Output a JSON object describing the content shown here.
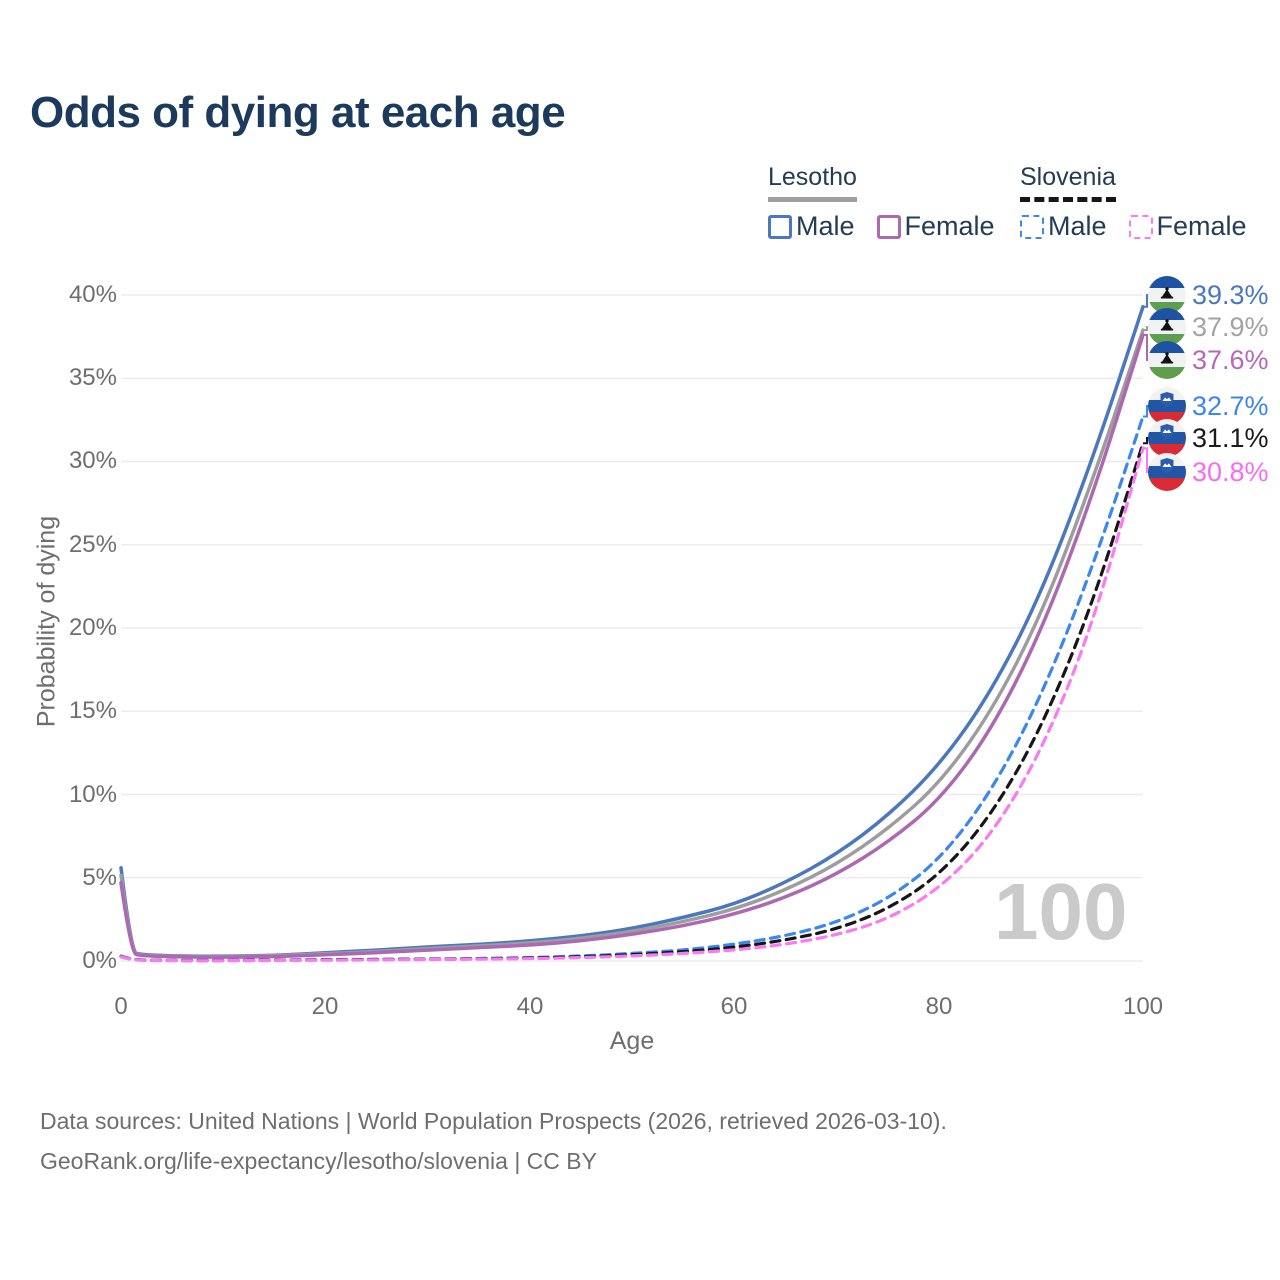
{
  "header": {
    "title": "Odds of dying at each age"
  },
  "legend": {
    "groups": [
      {
        "name": "Lesotho",
        "rule_style": "solid",
        "rule_color": "#a0a0a0",
        "items": [
          {
            "label": "Male",
            "swatch_color": "#4a78bf",
            "dashed": false
          },
          {
            "label": "Female",
            "swatch_color": "#ad68b2",
            "dashed": false
          }
        ]
      },
      {
        "name": "Slovenia",
        "rule_style": "dashed",
        "rule_color": "#161616",
        "items": [
          {
            "label": "Male",
            "swatch_color": "#3b87f2",
            "dashed": true
          },
          {
            "label": "Female",
            "swatch_color": "#fb79f1",
            "dashed": true
          }
        ]
      }
    ]
  },
  "chart_data": {
    "type": "line",
    "title": "Odds of dying at each age",
    "xlabel": "Age",
    "ylabel": "Probability of dying",
    "xlim": [
      0,
      100
    ],
    "ylim": [
      0,
      40
    ],
    "grid": "horizontal",
    "x_tick_labels": [
      "0",
      "20",
      "40",
      "60",
      "80",
      "100"
    ],
    "x_tick_values": [
      0,
      20,
      40,
      60,
      80,
      100
    ],
    "y_tick_labels": [
      "40%",
      "35%",
      "30%",
      "25%",
      "20%",
      "15%",
      "10%",
      "5%",
      "0%"
    ],
    "y_tick_values": [
      40,
      35,
      30,
      25,
      20,
      15,
      10,
      5,
      0
    ],
    "grid_color": "#ececec",
    "series": [
      {
        "name": "Lesotho Male",
        "country": "Lesotho",
        "sex": "male",
        "color": "#4a78bf",
        "dashed": false,
        "end_value": 39.3,
        "points": [
          [
            0,
            5.6
          ],
          [
            1,
            0.55
          ],
          [
            2,
            0.38
          ],
          [
            5,
            0.3
          ],
          [
            10,
            0.28
          ],
          [
            15,
            0.33
          ],
          [
            20,
            0.5
          ],
          [
            25,
            0.65
          ],
          [
            30,
            0.85
          ],
          [
            35,
            1.0
          ],
          [
            40,
            1.2
          ],
          [
            45,
            1.5
          ],
          [
            50,
            1.95
          ],
          [
            55,
            2.6
          ],
          [
            60,
            3.4
          ],
          [
            65,
            4.7
          ],
          [
            70,
            6.4
          ],
          [
            75,
            8.7
          ],
          [
            80,
            11.7
          ],
          [
            85,
            16.0
          ],
          [
            90,
            22.0
          ],
          [
            95,
            30.0
          ],
          [
            100,
            39.3
          ]
        ]
      },
      {
        "name": "Lesotho",
        "country": "Lesotho",
        "sex": "all",
        "color": "#9d9d9d",
        "dashed": false,
        "end_value": 37.9,
        "points": [
          [
            0,
            5.15
          ],
          [
            1,
            0.5
          ],
          [
            2,
            0.35
          ],
          [
            5,
            0.27
          ],
          [
            10,
            0.25
          ],
          [
            15,
            0.3
          ],
          [
            20,
            0.44
          ],
          [
            25,
            0.57
          ],
          [
            30,
            0.75
          ],
          [
            35,
            0.9
          ],
          [
            40,
            1.08
          ],
          [
            45,
            1.35
          ],
          [
            50,
            1.77
          ],
          [
            55,
            2.35
          ],
          [
            60,
            3.1
          ],
          [
            65,
            4.25
          ],
          [
            70,
            5.8
          ],
          [
            75,
            7.9
          ],
          [
            80,
            10.6
          ],
          [
            85,
            14.8
          ],
          [
            90,
            20.7
          ],
          [
            95,
            28.7
          ],
          [
            100,
            37.9
          ]
        ]
      },
      {
        "name": "Lesotho Female",
        "country": "Lesotho",
        "sex": "female",
        "color": "#ad68b2",
        "dashed": false,
        "end_value": 37.6,
        "points": [
          [
            0,
            4.7
          ],
          [
            1,
            0.45
          ],
          [
            2,
            0.32
          ],
          [
            5,
            0.25
          ],
          [
            10,
            0.22
          ],
          [
            15,
            0.26
          ],
          [
            20,
            0.38
          ],
          [
            25,
            0.5
          ],
          [
            30,
            0.65
          ],
          [
            35,
            0.8
          ],
          [
            40,
            0.95
          ],
          [
            45,
            1.2
          ],
          [
            50,
            1.6
          ],
          [
            55,
            2.1
          ],
          [
            60,
            2.8
          ],
          [
            65,
            3.8
          ],
          [
            70,
            5.2
          ],
          [
            75,
            7.1
          ],
          [
            80,
            9.6
          ],
          [
            85,
            13.7
          ],
          [
            90,
            19.7
          ],
          [
            95,
            27.8
          ],
          [
            100,
            37.6
          ]
        ]
      },
      {
        "name": "Slovenia Male",
        "country": "Slovenia",
        "sex": "male",
        "color": "#3b87f2",
        "dashed": true,
        "end_value": 32.7,
        "points": [
          [
            0,
            0.3
          ],
          [
            1,
            0.05
          ],
          [
            5,
            0.03
          ],
          [
            10,
            0.03
          ],
          [
            15,
            0.05
          ],
          [
            20,
            0.08
          ],
          [
            25,
            0.1
          ],
          [
            30,
            0.12
          ],
          [
            35,
            0.15
          ],
          [
            40,
            0.2
          ],
          [
            45,
            0.3
          ],
          [
            50,
            0.45
          ],
          [
            55,
            0.65
          ],
          [
            60,
            1.0
          ],
          [
            65,
            1.5
          ],
          [
            70,
            2.3
          ],
          [
            75,
            3.7
          ],
          [
            80,
            6.0
          ],
          [
            85,
            10.0
          ],
          [
            90,
            15.8
          ],
          [
            95,
            23.5
          ],
          [
            100,
            32.7
          ]
        ]
      },
      {
        "name": "Slovenia",
        "country": "Slovenia",
        "sex": "all",
        "color": "#161616",
        "dashed": true,
        "end_value": 31.1,
        "points": [
          [
            0,
            0.27
          ],
          [
            1,
            0.05
          ],
          [
            5,
            0.03
          ],
          [
            10,
            0.03
          ],
          [
            15,
            0.04
          ],
          [
            20,
            0.07
          ],
          [
            25,
            0.09
          ],
          [
            30,
            0.1
          ],
          [
            35,
            0.13
          ],
          [
            40,
            0.17
          ],
          [
            45,
            0.25
          ],
          [
            50,
            0.38
          ],
          [
            55,
            0.55
          ],
          [
            60,
            0.82
          ],
          [
            65,
            1.25
          ],
          [
            70,
            1.9
          ],
          [
            75,
            3.1
          ],
          [
            80,
            5.1
          ],
          [
            85,
            8.6
          ],
          [
            90,
            13.9
          ],
          [
            95,
            21.3
          ],
          [
            100,
            31.1
          ]
        ]
      },
      {
        "name": "Slovenia Female",
        "country": "Slovenia",
        "sex": "female",
        "color": "#fb79f1",
        "dashed": true,
        "end_value": 30.8,
        "points": [
          [
            0,
            0.25
          ],
          [
            1,
            0.04
          ],
          [
            5,
            0.02
          ],
          [
            10,
            0.02
          ],
          [
            15,
            0.03
          ],
          [
            20,
            0.05
          ],
          [
            25,
            0.07
          ],
          [
            30,
            0.09
          ],
          [
            35,
            0.11
          ],
          [
            40,
            0.14
          ],
          [
            45,
            0.2
          ],
          [
            50,
            0.3
          ],
          [
            55,
            0.45
          ],
          [
            60,
            0.65
          ],
          [
            65,
            1.0
          ],
          [
            70,
            1.55
          ],
          [
            75,
            2.5
          ],
          [
            80,
            4.3
          ],
          [
            85,
            7.4
          ],
          [
            90,
            12.5
          ],
          [
            95,
            20.0
          ],
          [
            100,
            30.8
          ]
        ]
      }
    ]
  },
  "endpoints": [
    {
      "label": "39.3%",
      "value": 39.3,
      "color": "#4a78bf",
      "flag": "lesotho"
    },
    {
      "label": "37.9%",
      "value": 37.9,
      "color": "#a3a3a3",
      "flag": "lesotho"
    },
    {
      "label": "37.6%",
      "value": 37.6,
      "color": "#b865bd",
      "flag": "lesotho"
    },
    {
      "label": "32.7%",
      "value": 32.7,
      "color": "#3b87f2",
      "flag": "slovenia"
    },
    {
      "label": "31.1%",
      "value": 31.1,
      "color": "#1a1a1a",
      "flag": "slovenia"
    },
    {
      "label": "30.8%",
      "value": 30.8,
      "color": "#fb6bf0",
      "flag": "slovenia"
    }
  ],
  "age_indicator": "100",
  "footer": {
    "line1": "Data sources: United Nations | World Population Prospects (2026, retrieved 2026-03-10).",
    "line2": "GeoRank.org/life-expectancy/lesotho/slovenia | CC BY"
  }
}
